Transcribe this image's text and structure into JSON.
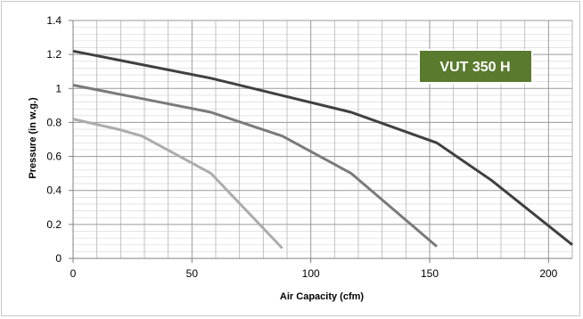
{
  "chart_data": {
    "type": "line",
    "title": "",
    "xlabel": "Air Capacity (cfm)",
    "ylabel": "Pressure (in w.g.)",
    "xlim": [
      0,
      210
    ],
    "ylim": [
      0,
      1.4
    ],
    "x_ticks": [
      0,
      50,
      100,
      150,
      200
    ],
    "x_tick_labels": [
      "0",
      "50",
      "100",
      "150",
      "200"
    ],
    "y_ticks": [
      0,
      0.2,
      0.4,
      0.6,
      0.8,
      1.0,
      1.2,
      1.4
    ],
    "y_tick_labels": [
      "0",
      "0.2",
      "0.4",
      "0.6",
      "0.8",
      "1",
      "1.2",
      "1.4"
    ],
    "grid": true,
    "annotation": "VUT 350 H",
    "colors": {
      "annotation_bg": "#5a7a2e",
      "grid": "#b5b5b5",
      "axis": "#7f7f7f"
    },
    "series": [
      {
        "color": "#404040",
        "x": [
          0,
          58,
          117,
          153,
          176,
          210
        ],
        "y": [
          1.22,
          1.06,
          0.86,
          0.68,
          0.46,
          0.08
        ]
      },
      {
        "color": "#7a7a7a",
        "x": [
          0,
          29,
          58,
          88,
          117,
          153
        ],
        "y": [
          1.02,
          0.94,
          0.86,
          0.72,
          0.5,
          0.07
        ]
      },
      {
        "color": "#acacac",
        "x": [
          0,
          19,
          29,
          58,
          88
        ],
        "y": [
          0.82,
          0.76,
          0.72,
          0.5,
          0.06
        ]
      }
    ]
  }
}
